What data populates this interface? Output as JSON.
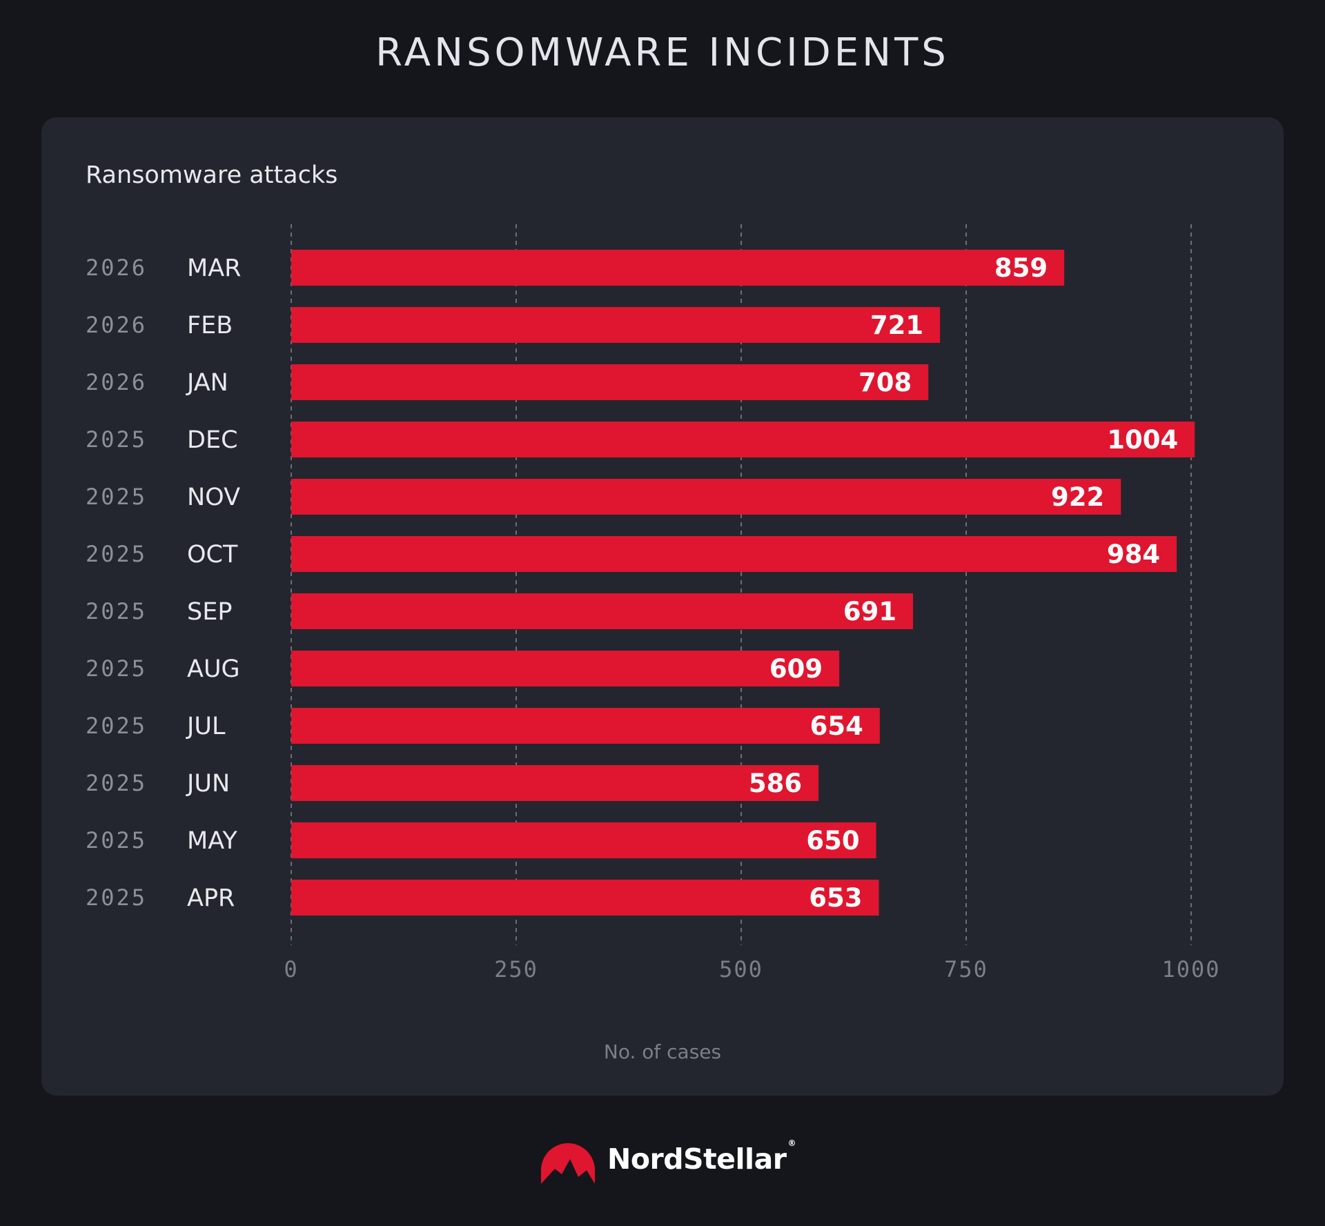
{
  "header": {
    "title": "RANSOMWARE INCIDENTS"
  },
  "brand": {
    "name": "NordStellar",
    "registered": "®",
    "logo_icon": "mountain-peak-icon",
    "logo_color": "#e0152f"
  },
  "colors": {
    "bar": "#e0152f",
    "background": "#14161b",
    "card": "#23262e",
    "grid": "#6c6f78"
  },
  "chart_data": {
    "type": "bar",
    "orientation": "horizontal",
    "title": "Ransomware attacks",
    "xlabel": "No. of cases",
    "ylabel": "",
    "xlim": [
      0,
      1000
    ],
    "xticks": [
      0,
      250,
      500,
      750,
      1000
    ],
    "grid": "vertical dashed",
    "legend": "none",
    "categories": [
      {
        "year": "2026",
        "month": "MAR",
        "value": 859
      },
      {
        "year": "2026",
        "month": "FEB",
        "value": 721
      },
      {
        "year": "2026",
        "month": "JAN",
        "value": 708
      },
      {
        "year": "2025",
        "month": "DEC",
        "value": 1004
      },
      {
        "year": "2025",
        "month": "NOV",
        "value": 922
      },
      {
        "year": "2025",
        "month": "OCT",
        "value": 984
      },
      {
        "year": "2025",
        "month": "SEP",
        "value": 691
      },
      {
        "year": "2025",
        "month": "AUG",
        "value": 609
      },
      {
        "year": "2025",
        "month": "JUL",
        "value": 654
      },
      {
        "year": "2025",
        "month": "JUN",
        "value": 586
      },
      {
        "year": "2025",
        "month": "MAY",
        "value": 650
      },
      {
        "year": "2025",
        "month": "APR",
        "value": 653
      }
    ]
  }
}
